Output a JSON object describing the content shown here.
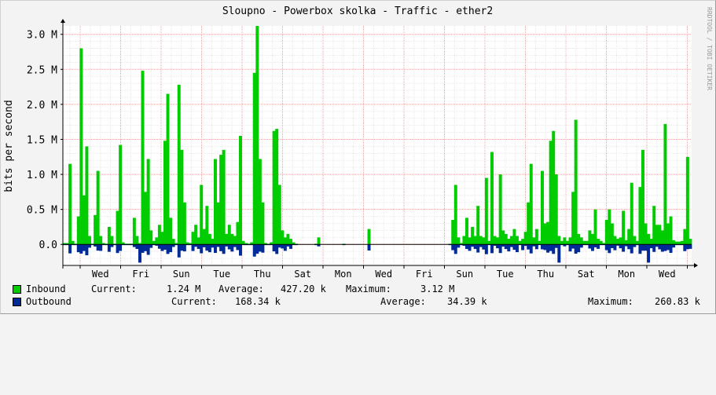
{
  "chart_data": {
    "type": "area",
    "title": "Sloupno - Powerbox skolka - Traffic - ether2",
    "ylabel": "bits per second",
    "watermark": "RRDTOOL / TOBI OETIKER",
    "y_unit_suffix": "M",
    "ylim": [
      -0.3,
      3.12
    ],
    "yticks": [
      0.0,
      0.5,
      1.0,
      1.5,
      2.0,
      2.5,
      3.0
    ],
    "ytick_labels": [
      "0.0",
      "0.5 M",
      "1.0 M",
      "1.5 M",
      "2.0 M",
      "2.5 M",
      "3.0 M"
    ],
    "x_day_labels": [
      "Wed",
      "Fri",
      "Sun",
      "Tue",
      "Thu",
      "Sat",
      "Mon",
      "Wed",
      "Fri",
      "Sun",
      "Tue",
      "Thu",
      "Sat",
      "Mon",
      "Wed"
    ],
    "grid": true,
    "legend_position": "bottom-left",
    "inbound": [
      0.02,
      0.02,
      1.15,
      0.05,
      0.01,
      0.4,
      2.8,
      0.7,
      1.4,
      0.12,
      0.01,
      0.42,
      1.05,
      0.12,
      0.02,
      0.01,
      0.25,
      0.12,
      0.01,
      0.48,
      1.42,
      0.03,
      0.01,
      0.01,
      0.01,
      0.38,
      0.12,
      0.02,
      2.48,
      0.75,
      1.22,
      0.2,
      0.05,
      0.1,
      0.28,
      0.18,
      1.48,
      2.15,
      0.38,
      0.08,
      0.02,
      2.28,
      1.35,
      0.6,
      0.03,
      0.02,
      0.18,
      0.28,
      0.1,
      0.85,
      0.22,
      0.55,
      0.15,
      0.08,
      1.22,
      0.6,
      1.28,
      1.35,
      0.15,
      0.28,
      0.15,
      0.12,
      0.32,
      1.55,
      0.05,
      0.02,
      0.01,
      0.03,
      2.45,
      3.12,
      1.22,
      0.6,
      0.02,
      0.01,
      0.03,
      1.62,
      1.65,
      0.85,
      0.2,
      0.1,
      0.15,
      0.08,
      0.03,
      0.01,
      0.0,
      0.0,
      0.0,
      0.0,
      0.0,
      0.0,
      0.01,
      0.1,
      0.0,
      0.0,
      0.0,
      0.0,
      0.0,
      0.0,
      0.0,
      0.0,
      0.01,
      0.0,
      0.0,
      0.0,
      0.0,
      0.0,
      0.0,
      0.0,
      0.0,
      0.22,
      0.0,
      0.0,
      0.0,
      0.0,
      0.0,
      0.0,
      0.0,
      0.0,
      0.0,
      0.0,
      0.0,
      0.0,
      0.0,
      0.0,
      0.0,
      0.0,
      0.0,
      0.0,
      0.0,
      0.0,
      0.0,
      0.0,
      0.0,
      0.0,
      0.0,
      0.0,
      0.0,
      0.0,
      0.01,
      0.35,
      0.85,
      0.1,
      0.02,
      0.12,
      0.38,
      0.1,
      0.25,
      0.12,
      0.55,
      0.12,
      0.1,
      0.95,
      0.05,
      1.32,
      0.12,
      0.1,
      1.0,
      0.2,
      0.15,
      0.08,
      0.12,
      0.22,
      0.12,
      0.05,
      0.08,
      0.18,
      0.6,
      1.15,
      0.1,
      0.22,
      0.05,
      1.05,
      0.3,
      0.32,
      1.48,
      1.62,
      1.0,
      0.12,
      0.05,
      0.1,
      0.05,
      0.1,
      0.75,
      1.78,
      0.15,
      0.1,
      0.05,
      0.05,
      0.2,
      0.15,
      0.5,
      0.08,
      0.05,
      0.02,
      0.35,
      0.5,
      0.3,
      0.12,
      0.08,
      0.1,
      0.48,
      0.06,
      0.22,
      0.88,
      0.12,
      0.05,
      0.82,
      1.35,
      0.3,
      0.15,
      0.08,
      0.55,
      0.28,
      0.28,
      0.2,
      1.72,
      0.3,
      0.4,
      0.06,
      0.04,
      0.04,
      0.05,
      0.22,
      1.25,
      0.08
    ]
  },
  "legend": {
    "inbound": {
      "name": "Inbound",
      "color": "#00cc00",
      "current_label": "Current:",
      "current": "1.24 M",
      "average_label": "Average:",
      "average": "427.20 k",
      "maximum_label": "Maximum:",
      "maximum": "3.12 M"
    },
    "outbound": {
      "name": "Outbound",
      "color": "#002a97",
      "current_label": "Current:",
      "current": "168.34 k",
      "average_label": "Average:",
      "average": "34.39 k",
      "maximum_label": "Maximum:",
      "maximum": "260.83 k"
    }
  }
}
